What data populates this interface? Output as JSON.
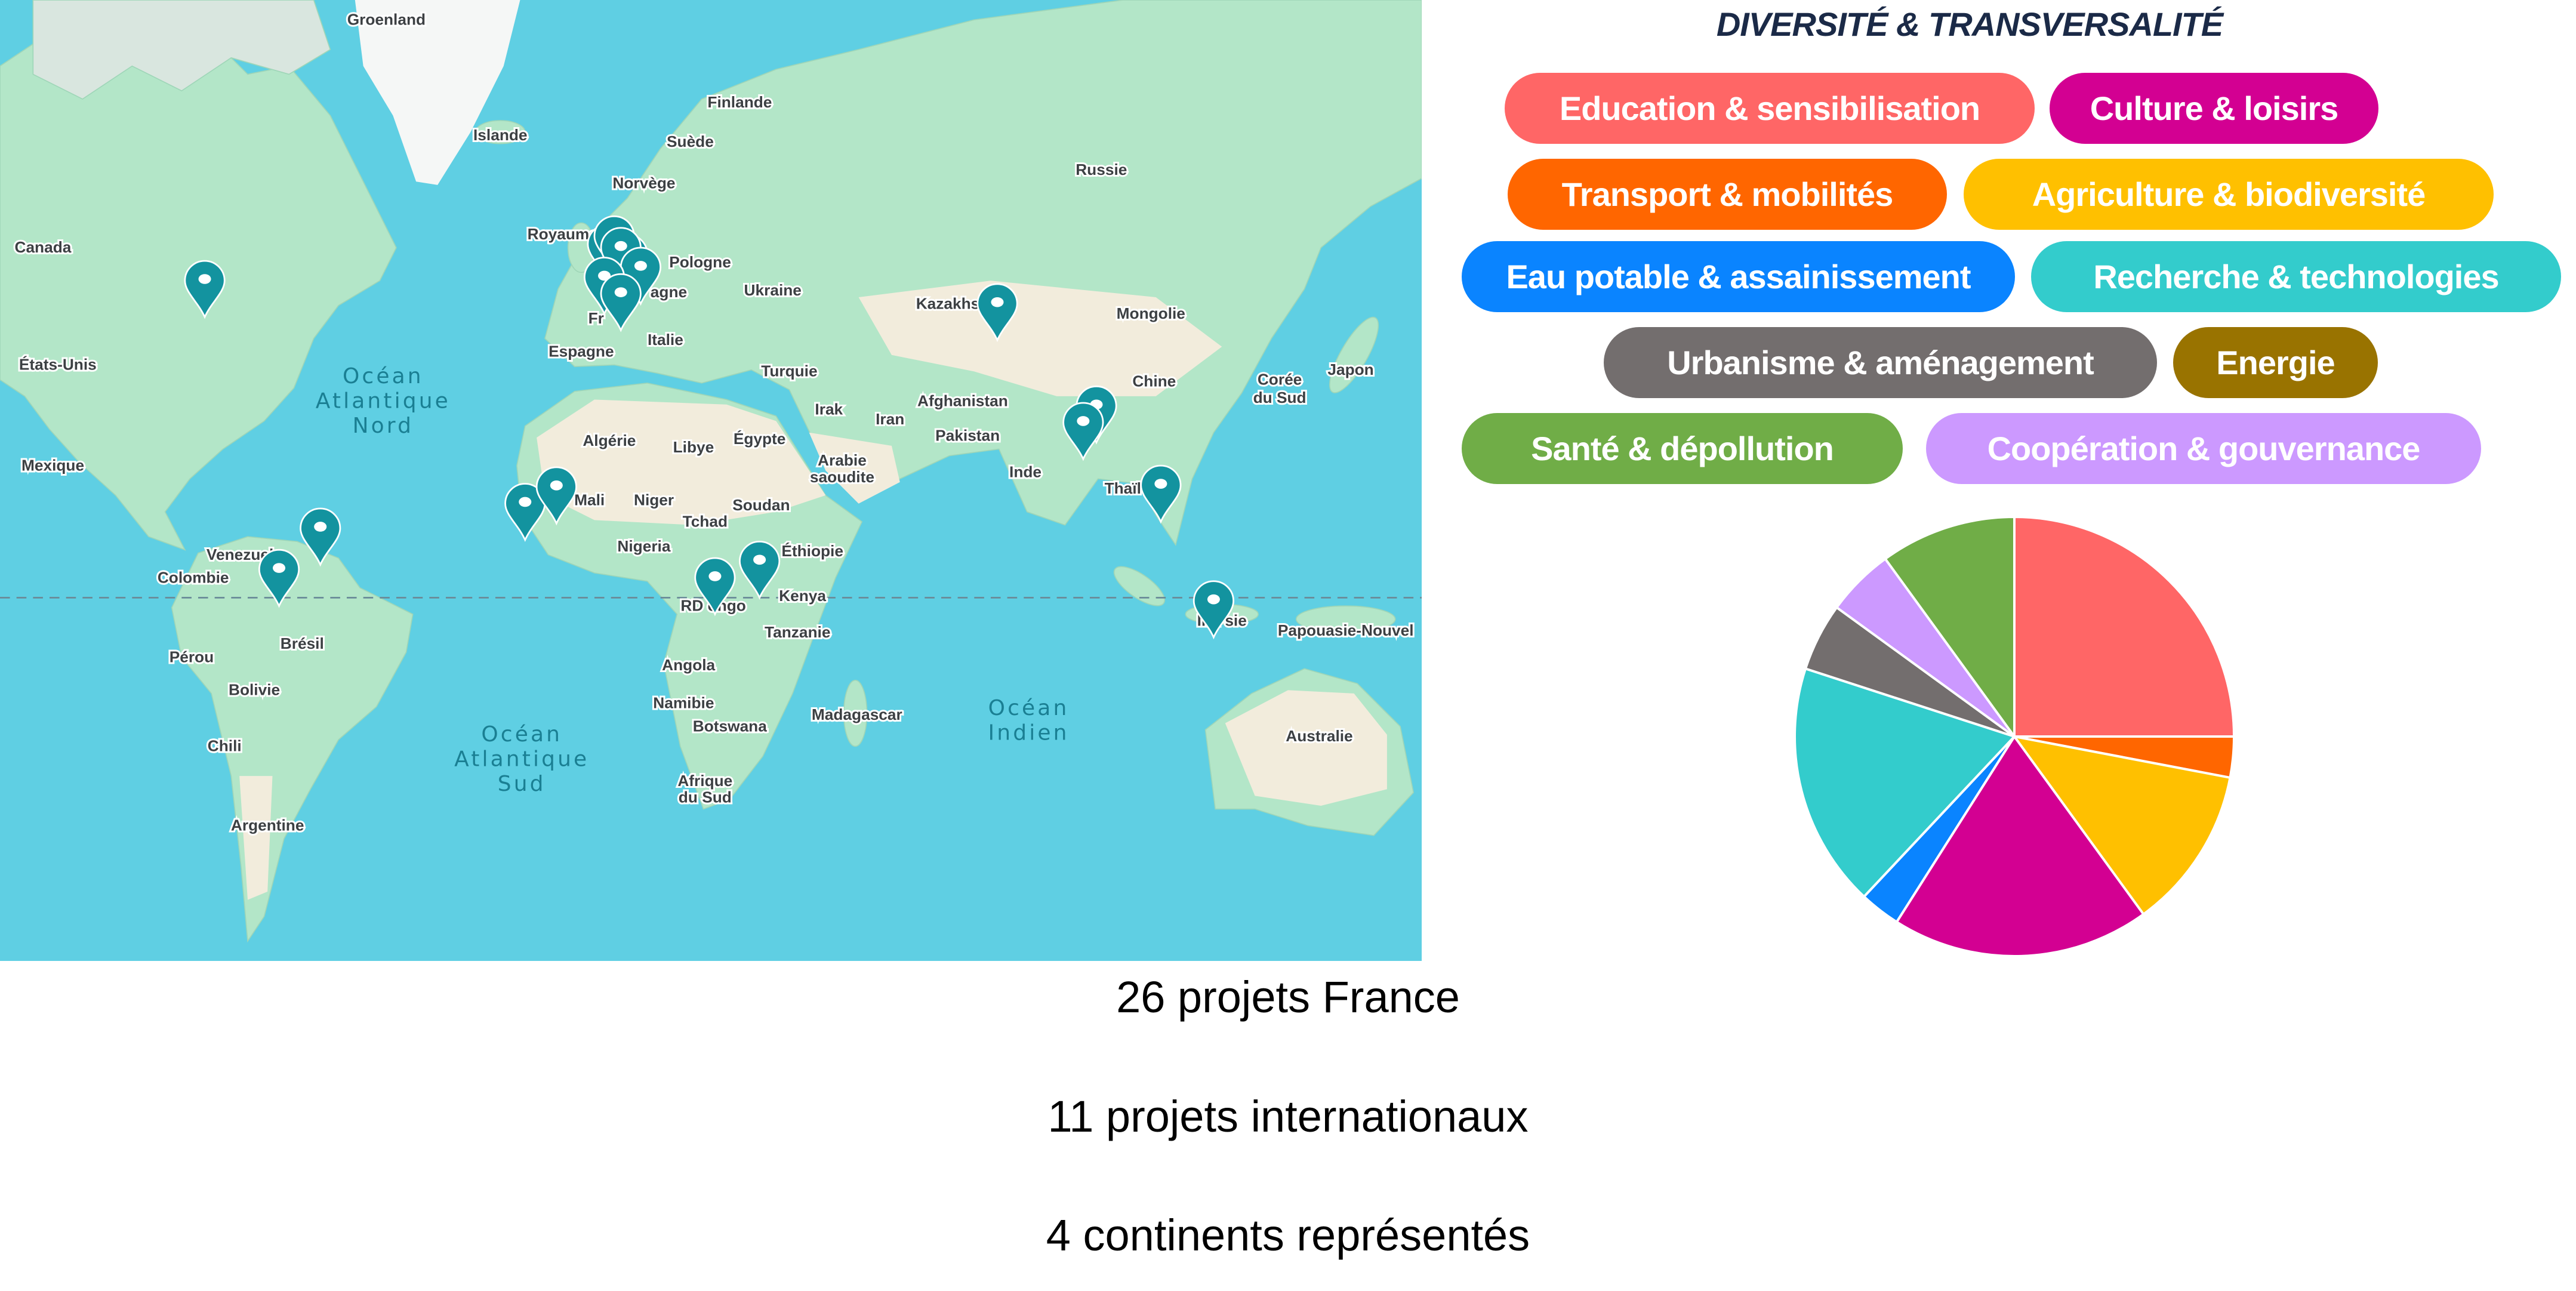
{
  "map": {
    "labels": {
      "groenland": "Groenland",
      "islande": "Islande",
      "finlande": "Finlande",
      "suede": "Suède",
      "norvege": "Norvège",
      "russie": "Russie",
      "royaume_uni": "Royaume-Uni",
      "pologne": "Pologne",
      "canada": "Canada",
      "etats_unis": "États-Unis",
      "mexique": "Mexique",
      "ukraine": "Ukraine",
      "kazakhstan": "Kazakhs",
      "mongolie": "Mongolie",
      "espagne": "Espagne",
      "italie": "Italie",
      "france": "Fr",
      "allemagne": "agne",
      "turquie": "Turquie",
      "chine": "Chine",
      "coree_1": "Corée",
      "coree_2": "du Sud",
      "japon": "Japon",
      "algerie": "Algérie",
      "libye": "Libye",
      "egypte": "Égypte",
      "irak": "Irak",
      "iran": "Iran",
      "afghanistan": "Afghanistan",
      "pakistan": "Pakistan",
      "arabie_1": "Arabie",
      "arabie_2": "saoudite",
      "inde": "Inde",
      "mali": "Mali",
      "niger": "Niger",
      "soudan": "Soudan",
      "tchad": "Tchad",
      "thailande": "Thaïl",
      "nigeria": "Nigeria",
      "ethiopie": "Éthiopie",
      "venezuela": "Venezuela",
      "colombie": "Colombie",
      "kenya": "Kenya",
      "rd_congo": "RD  ongo",
      "indonesie": "Ind    sie",
      "papouasie": "Papouasie-Nouvel",
      "tanzanie": "Tanzanie",
      "bresil": "Brésil",
      "perou": "Pérou",
      "bolivie": "Bolivie",
      "angola": "Angola",
      "madagascar": "Madagascar",
      "namibie": "Namibie",
      "botswana": "Botswana",
      "australie": "Australie",
      "chili": "Chili",
      "afrique_sud_1": "Afrique",
      "afrique_sud_2": "du Sud",
      "argentine": "Argentine"
    },
    "oceans": {
      "atl_nord": [
        "Océan",
        "Atlantique",
        "Nord"
      ],
      "atl_sud": [
        "Océan",
        "Atlantique",
        "Sud"
      ],
      "indien": [
        "Océan",
        "Indien"
      ]
    },
    "marker_color": "#13939f",
    "marker_icon": "map-pin-icon"
  },
  "title": "DIVERSITÉ & TRANSVERSALITÉ",
  "tags": [
    {
      "label": "Education & sensibilisation",
      "color": "#ff6666"
    },
    {
      "label": "Culture & loisirs",
      "color": "#d30092"
    },
    {
      "label": "Transport & mobilités",
      "color": "#ff6600"
    },
    {
      "label": "Agriculture & biodiversité",
      "color": "#ffc000"
    },
    {
      "label": "Eau potable & assainissement",
      "color": "#0a84ff"
    },
    {
      "label": "Recherche & technologies",
      "color": "#33cccc"
    },
    {
      "label": "Urbanisme & aménagement",
      "color": "#736e6e"
    },
    {
      "label": "Energie",
      "color": "#997300"
    },
    {
      "label": "Santé & dépollution",
      "color": "#70ad47"
    },
    {
      "label": "Coopération & gouvernance",
      "color": "#cc99ff"
    }
  ],
  "chart_data": {
    "type": "pie",
    "unit": "percent (estimated)",
    "start": "top, clockwise",
    "categories": [
      "Education & sensibilisation",
      "Transport & mobilités",
      "Agriculture & biodiversité",
      "Culture & loisirs",
      "Eau potable & assainissement",
      "Recherche & technologies",
      "Urbanisme & aménagement",
      "Coopération & gouvernance",
      "Santé & dépollution",
      "Energie"
    ],
    "values": [
      25,
      3,
      12,
      19,
      3,
      18,
      5,
      5,
      10,
      0
    ],
    "colors": [
      "#ff6666",
      "#ff6600",
      "#ffc000",
      "#d30092",
      "#0a84ff",
      "#33cccc",
      "#736e6e",
      "#cc99ff",
      "#70ad47",
      "#997300"
    ]
  },
  "stats": [
    "26 projets France",
    "11 projets internationaux",
    "4 continents représentés"
  ]
}
